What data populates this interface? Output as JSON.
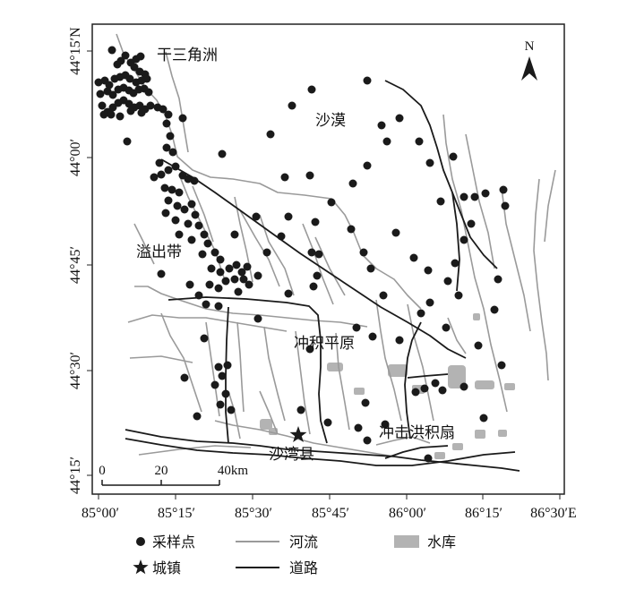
{
  "map": {
    "y_ticks": [
      "44°15′N",
      "44°00′",
      "44°45′",
      "44°30′",
      "44°15′"
    ],
    "x_ticks": [
      "85°00′",
      "85°15′",
      "85°30′",
      "85°45′",
      "86°00′",
      "86°15′",
      "86°30′E"
    ],
    "labels": {
      "delta": "干三角洲",
      "desert": "沙漠",
      "overflow": "溢出带",
      "plain": "冲积平原",
      "fan": "冲击洪积扇",
      "county": "沙湾县"
    },
    "north": "N",
    "scale_bar": [
      "0",
      "20",
      "40km"
    ],
    "colors": {
      "point": "#1a1a1a",
      "river": "#9a9a9a",
      "road": "#1a1a1a",
      "reservoir": "#b3b3b3",
      "frame": "#222222"
    }
  },
  "legend": {
    "items": [
      {
        "label": "采样点",
        "icon": "filled-circle-icon"
      },
      {
        "label": "河流",
        "icon": "gray-line-icon"
      },
      {
        "label": "水库",
        "icon": "gray-block-icon"
      },
      {
        "label": "城镇",
        "icon": "star-icon"
      },
      {
        "label": "道路",
        "icon": "black-line-icon"
      }
    ]
  }
}
